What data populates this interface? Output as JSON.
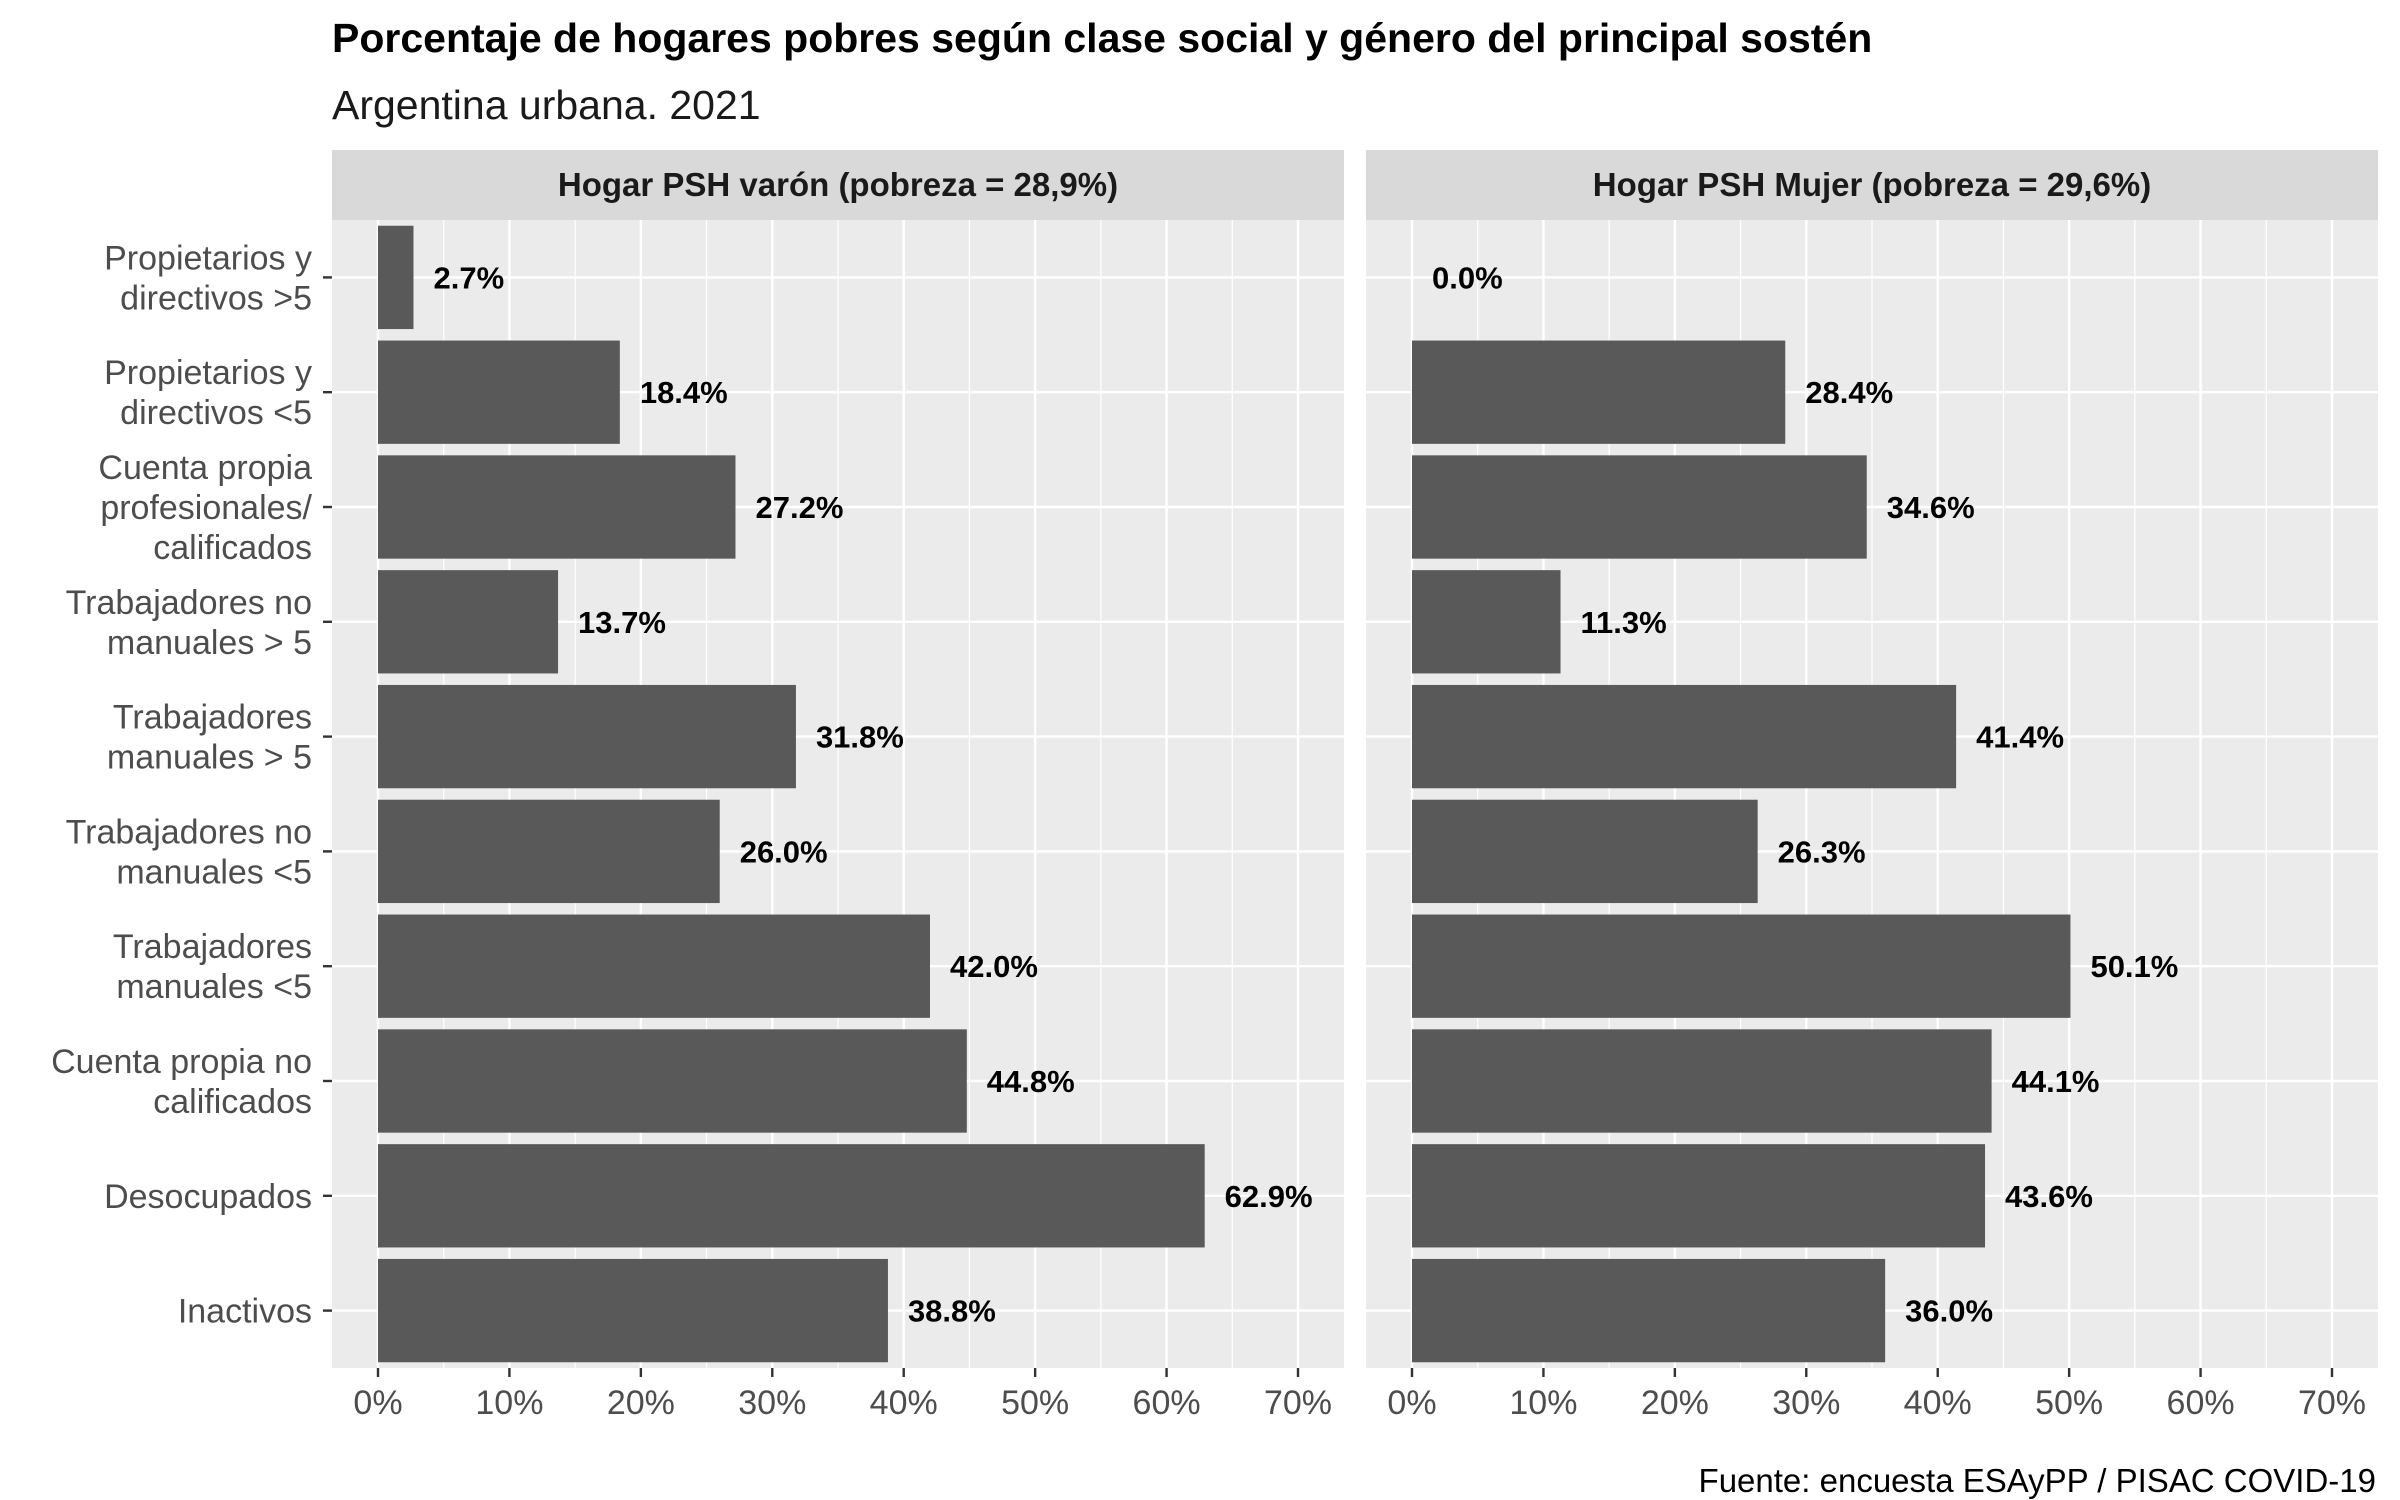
{
  "chart_data": {
    "type": "bar",
    "orientation": "horizontal",
    "title": "Porcentaje de hogares pobres según clase social y género del principal sostén",
    "subtitle": "Argentina urbana. 2021",
    "caption": "Fuente: encuesta ESAyPP / PISAC COVID-19",
    "categories": [
      "Propietarios y\ndirectivos >5",
      "Propietarios y\ndirectivos <5",
      "Cuenta propia\nprofesionales/\ncalificados",
      "Trabajadores no\nmanuales > 5",
      "Trabajadores\nmanuales > 5",
      "Trabajadores no\nmanuales <5",
      "Trabajadores\nmanuales <5",
      "Cuenta propia no\ncalificados",
      "Desocupados",
      "Inactivos"
    ],
    "panels": [
      {
        "name": "Hogar PSH varón (pobreza = 28,9%)",
        "values": [
          2.7,
          18.4,
          27.2,
          13.7,
          31.8,
          26.0,
          42.0,
          44.8,
          62.9,
          38.8
        ],
        "labels": [
          "2.7%",
          "18.4%",
          "27.2%",
          "13.7%",
          "31.8%",
          "26.0%",
          "42.0%",
          "44.8%",
          "62.9%",
          "38.8%"
        ]
      },
      {
        "name": "Hogar PSH Mujer (pobreza = 29,6%)",
        "values": [
          0.0,
          28.4,
          34.6,
          11.3,
          41.4,
          26.3,
          50.1,
          44.1,
          43.6,
          36.0
        ],
        "labels": [
          "0.0%",
          "28.4%",
          "34.6%",
          "11.3%",
          "41.4%",
          "26.3%",
          "50.1%",
          "44.1%",
          "43.6%",
          "36.0%"
        ]
      }
    ],
    "x_ticks": [
      "0%",
      "10%",
      "20%",
      "30%",
      "40%",
      "50%",
      "60%",
      "70%"
    ],
    "xlim": [
      -3.5,
      73.5
    ],
    "bar_color": "#595959",
    "panel_background": "#ebebeb",
    "strip_background": "#d9d9d9",
    "grid": true,
    "legend": "none"
  }
}
